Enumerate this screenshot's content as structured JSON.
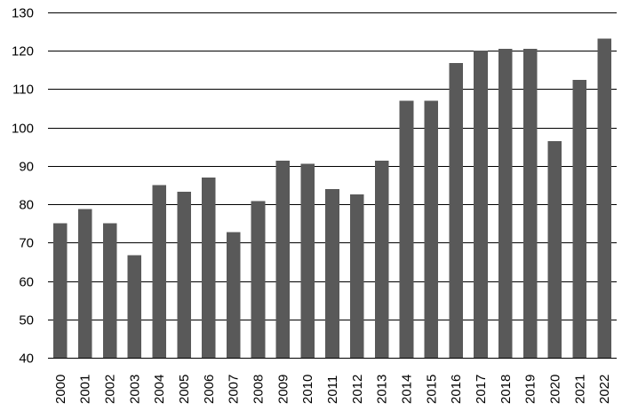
{
  "chart_data": {
    "type": "bar",
    "title": "",
    "xlabel": "",
    "ylabel": "",
    "categories": [
      "2000",
      "2001",
      "2002",
      "2003",
      "2004",
      "2005",
      "2006",
      "2007",
      "2008",
      "2009",
      "2010",
      "2011",
      "2012",
      "2013",
      "2014",
      "2015",
      "2016",
      "2017",
      "2018",
      "2019",
      "2020",
      "2021",
      "2022"
    ],
    "values": [
      75,
      78.8,
      75,
      66.7,
      85,
      83.3,
      87,
      72.7,
      80.8,
      91.4,
      90.5,
      84,
      82.6,
      91.4,
      107,
      107,
      116.8,
      120,
      120.5,
      120.5,
      96.5,
      112.4,
      123.2
    ],
    "ylim": [
      40,
      130
    ],
    "yticks": [
      40,
      50,
      60,
      70,
      80,
      90,
      100,
      110,
      120,
      130
    ],
    "grid": "horizontal",
    "legend": "none",
    "bar_color": "#595959",
    "grid_color": "#000000",
    "text_color": "#000000"
  }
}
